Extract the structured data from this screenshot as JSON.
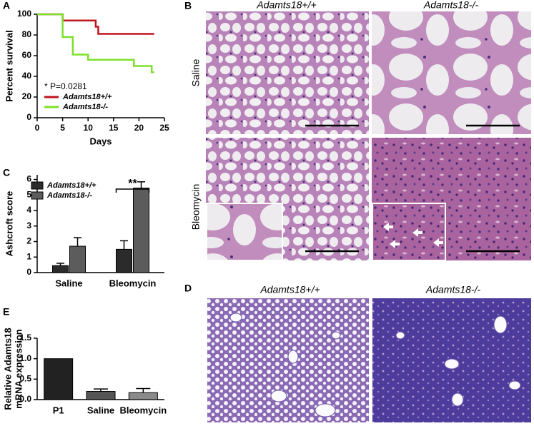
{
  "panel_labels": [
    "A",
    "B",
    "C",
    "D",
    "E"
  ],
  "micrographs_B": {
    "columns": [
      "Adamts18+/+",
      "Adamts18-/-"
    ],
    "rows": [
      "Saline",
      "Bleomycin"
    ]
  },
  "micrographs_D": {
    "columns": [
      "Adamts18+/+",
      "Adamts18-/-"
    ]
  },
  "chart_data": [
    {
      "type": "line",
      "ylabel": "Percent survival",
      "xlabel": "Days",
      "annotation": "* P=0.0281",
      "xlim": [
        0,
        25
      ],
      "xticks": [
        0,
        5,
        10,
        15,
        20,
        25
      ],
      "ylim": [
        0,
        100
      ],
      "yticks": [
        0,
        20,
        40,
        60,
        80,
        100
      ],
      "series": [
        {
          "name": "Adamts18+/+",
          "color": "#c0141c",
          "x": [
            0,
            5,
            5,
            11.5,
            11.5,
            12,
            12,
            23
          ],
          "values": [
            100,
            100,
            94,
            94,
            88,
            88,
            81,
            81
          ]
        },
        {
          "name": "Adamts18-/-",
          "color": "#7ee02a",
          "x": [
            0,
            5,
            5,
            7,
            7,
            10,
            10,
            19,
            19,
            22.5,
            22.5,
            23
          ],
          "values": [
            100,
            100,
            78,
            78,
            61,
            61,
            56,
            56,
            50,
            50,
            44,
            44
          ]
        }
      ]
    },
    {
      "type": "bar",
      "ylabel": "Ashcroft score",
      "annotation": "**",
      "categories": [
        "Saline",
        "Bleomycin"
      ],
      "ylim": [
        0,
        6.3
      ],
      "yticks": [
        0,
        1,
        2,
        3,
        4,
        5,
        6
      ],
      "series": [
        {
          "name": "Adamts18+/+",
          "color": "#2b2b2b",
          "values": [
            0.45,
            1.5
          ],
          "errors": [
            0.15,
            0.55
          ]
        },
        {
          "name": "Adamts18-/-",
          "color": "#5c5c5c",
          "values": [
            1.7,
            5.45
          ],
          "errors": [
            0.55,
            0.4
          ]
        }
      ]
    },
    {
      "type": "bar",
      "ylabel_lines": [
        "Relative Adamts18",
        "mRNA expression"
      ],
      "categories": [
        "P1",
        "Saline",
        "Bleomycin"
      ],
      "ylim": [
        0,
        1.5
      ],
      "yticks": [
        {
          "value": 0,
          "label": "0.0"
        },
        {
          "value": 0.5,
          "label": "0.5"
        },
        {
          "value": 1,
          "label": "1.0"
        },
        {
          "value": 1.5,
          "label": "1.5"
        }
      ],
      "colors": [
        "#222222",
        "#555555",
        "#8a8a8a"
      ],
      "values": [
        1,
        0.2,
        0.17
      ],
      "errors": [
        null,
        0.06,
        0.1
      ]
    }
  ]
}
